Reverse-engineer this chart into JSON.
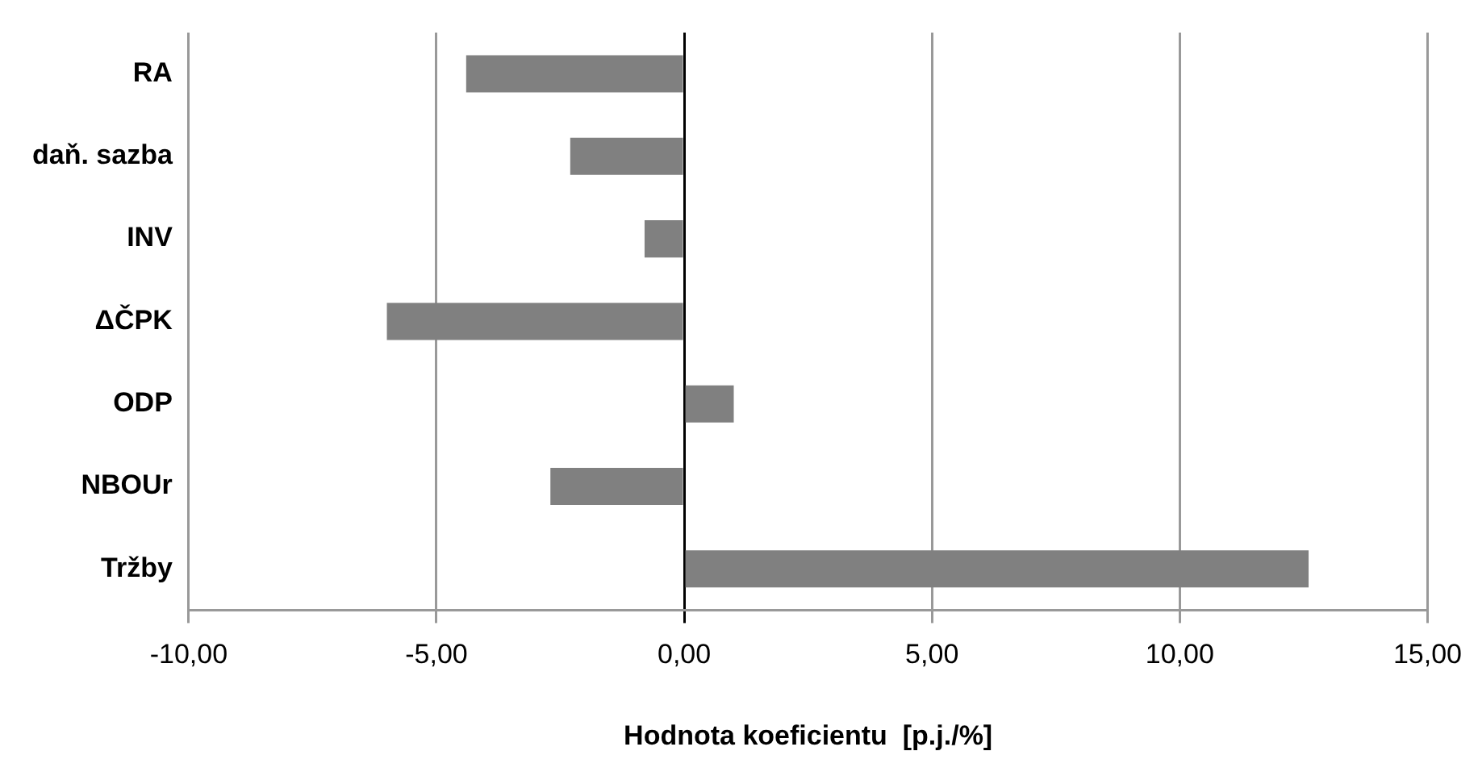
{
  "chart_data": {
    "type": "bar",
    "orientation": "horizontal",
    "xlabel": "Hodnota koeficientu  [p.j./%]",
    "categories": [
      "RA",
      "daň. sazba",
      "INV",
      "ΔČPK",
      "ODP",
      "NBOUr",
      "Tržby"
    ],
    "values": [
      -4.4,
      -2.3,
      -0.8,
      -6.0,
      1.0,
      -2.7,
      12.6
    ],
    "color": "#808080",
    "xlim": [
      -10,
      15
    ],
    "xticks": [
      {
        "value": -10,
        "label": "-10,00"
      },
      {
        "value": -5,
        "label": "-5,00"
      },
      {
        "value": 0,
        "label": "0,00"
      },
      {
        "value": 5,
        "label": "5,00"
      },
      {
        "value": 10,
        "label": "10,00"
      },
      {
        "value": 15,
        "label": "15,00"
      }
    ],
    "grid": "x",
    "legend": false
  }
}
